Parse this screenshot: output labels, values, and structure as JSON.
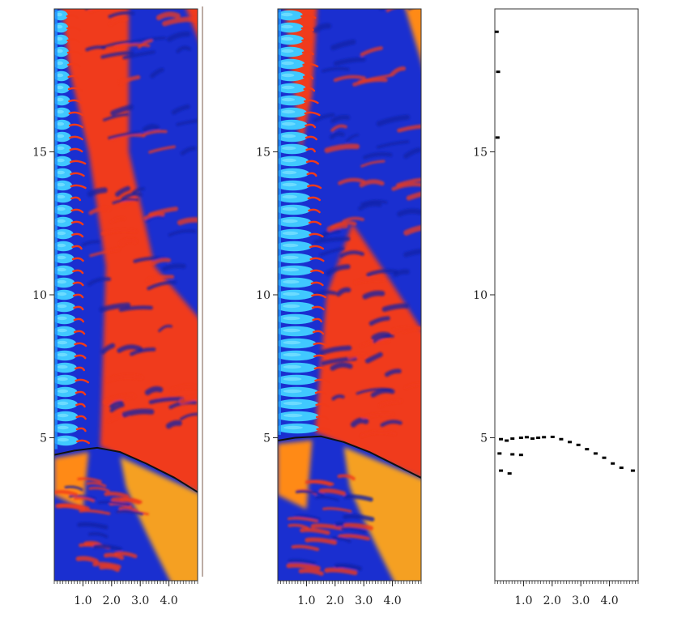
{
  "colors": {
    "cyan": "#40c8ff",
    "light_blue": "#1e90ff",
    "blue": "#1a2fd0",
    "dark_blue": "#1020a8",
    "red": "#f03a1a",
    "orange": "#ff8a18",
    "amber": "#f5a020",
    "front_line": "#111111"
  },
  "chart_data": [
    {
      "type": "heatmap",
      "panel": "left",
      "title": "",
      "xlabel": "",
      "ylabel": "",
      "xlim": [
        0,
        5
      ],
      "ylim": [
        0,
        20
      ],
      "x_ticks": [
        "1.0",
        "2.0",
        "3.0",
        "4.0"
      ],
      "y_ticks": [
        "5",
        "10",
        "15"
      ],
      "x_tick_values": [
        1.0,
        2.0,
        3.0,
        4.0
      ],
      "y_tick_values": [
        5,
        10,
        15
      ],
      "colorscale": [
        "cyan",
        "blue",
        "red",
        "orange"
      ],
      "front": {
        "description": "curved shock front separating lower orange/blue region from upper field",
        "points": [
          [
            0.0,
            4.4
          ],
          [
            0.7,
            4.55
          ],
          [
            1.5,
            4.65
          ],
          [
            2.3,
            4.5
          ],
          [
            3.2,
            4.1
          ],
          [
            4.2,
            3.6
          ],
          [
            5.0,
            3.1
          ]
        ]
      },
      "cyan_column_x": [
        0.0,
        0.9
      ],
      "grid": false
    },
    {
      "type": "heatmap",
      "panel": "middle",
      "title": "",
      "xlabel": "",
      "ylabel": "",
      "xlim": [
        0,
        5
      ],
      "ylim": [
        0,
        20
      ],
      "x_ticks": [
        "1.0",
        "2.0",
        "3.0",
        "4.0"
      ],
      "y_ticks": [
        "5",
        "10",
        "15"
      ],
      "x_tick_values": [
        1.0,
        2.0,
        3.0,
        4.0
      ],
      "y_tick_values": [
        5,
        10,
        15
      ],
      "colorscale": [
        "cyan",
        "blue",
        "red",
        "orange"
      ],
      "front": {
        "description": "curved shock front",
        "points": [
          [
            0.0,
            4.9
          ],
          [
            0.6,
            5.0
          ],
          [
            1.5,
            5.05
          ],
          [
            2.3,
            4.85
          ],
          [
            3.2,
            4.5
          ],
          [
            4.2,
            4.0
          ],
          [
            5.0,
            3.6
          ]
        ]
      },
      "cyan_column_x": [
        0.0,
        1.4
      ],
      "grid": false
    },
    {
      "type": "scatter",
      "panel": "right",
      "title": "",
      "xlabel": "",
      "ylabel": "",
      "xlim": [
        0,
        5
      ],
      "ylim": [
        0,
        20
      ],
      "x_ticks": [
        "1.0",
        "2.0",
        "3.0",
        "4.0"
      ],
      "y_ticks": [
        "5",
        "10",
        "15"
      ],
      "x_tick_values": [
        1.0,
        2.0,
        3.0,
        4.0
      ],
      "y_tick_values": [
        5,
        10,
        15
      ],
      "series": [
        {
          "values": [
            [
              0.2,
              4.95
            ],
            [
              0.4,
              4.9
            ],
            [
              0.6,
              4.97
            ],
            [
              0.9,
              5.0
            ],
            [
              1.1,
              5.02
            ],
            [
              1.3,
              4.97
            ],
            [
              1.5,
              5.0
            ],
            [
              1.7,
              5.02
            ],
            [
              2.0,
              5.03
            ],
            [
              2.3,
              4.95
            ],
            [
              2.6,
              4.85
            ],
            [
              2.9,
              4.75
            ],
            [
              3.2,
              4.6
            ],
            [
              3.5,
              4.45
            ],
            [
              3.8,
              4.3
            ],
            [
              4.1,
              4.1
            ],
            [
              4.4,
              3.95
            ],
            [
              4.8,
              3.85
            ],
            [
              0.15,
              4.45
            ],
            [
              0.6,
              4.42
            ],
            [
              0.9,
              4.4
            ],
            [
              0.2,
              3.85
            ],
            [
              0.5,
              3.75
            ],
            [
              0.1,
              17.8
            ],
            [
              0.05,
              19.2
            ],
            [
              0.08,
              15.5
            ]
          ]
        }
      ],
      "grid": false
    }
  ]
}
